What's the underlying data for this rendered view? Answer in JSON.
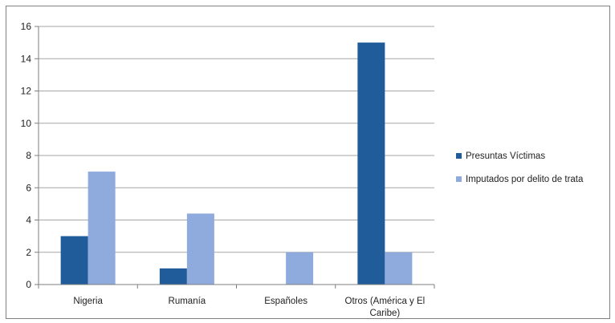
{
  "chart_data": {
    "type": "bar",
    "categories": [
      "Nigeria",
      "Rumanía",
      "Españoles",
      "Otros (América y El Caribe)"
    ],
    "category_lines": [
      [
        "Nigeria"
      ],
      [
        "Rumanía"
      ],
      [
        "Españoles"
      ],
      [
        "Otros (América y El",
        "Caribe)"
      ]
    ],
    "series": [
      {
        "name": "Presuntas Víctimas",
        "values": [
          3,
          1,
          0,
          15
        ],
        "color": "#1f5c99"
      },
      {
        "name": "Imputados por delito de trata",
        "values": [
          7,
          4.4,
          2,
          2
        ],
        "color": "#8faadc"
      }
    ],
    "ylim": [
      0,
      16
    ],
    "yticks": [
      0,
      2,
      4,
      6,
      8,
      10,
      12,
      14,
      16
    ],
    "grid": true,
    "legend_position": "right",
    "title": "",
    "xlabel": "",
    "ylabel": ""
  }
}
